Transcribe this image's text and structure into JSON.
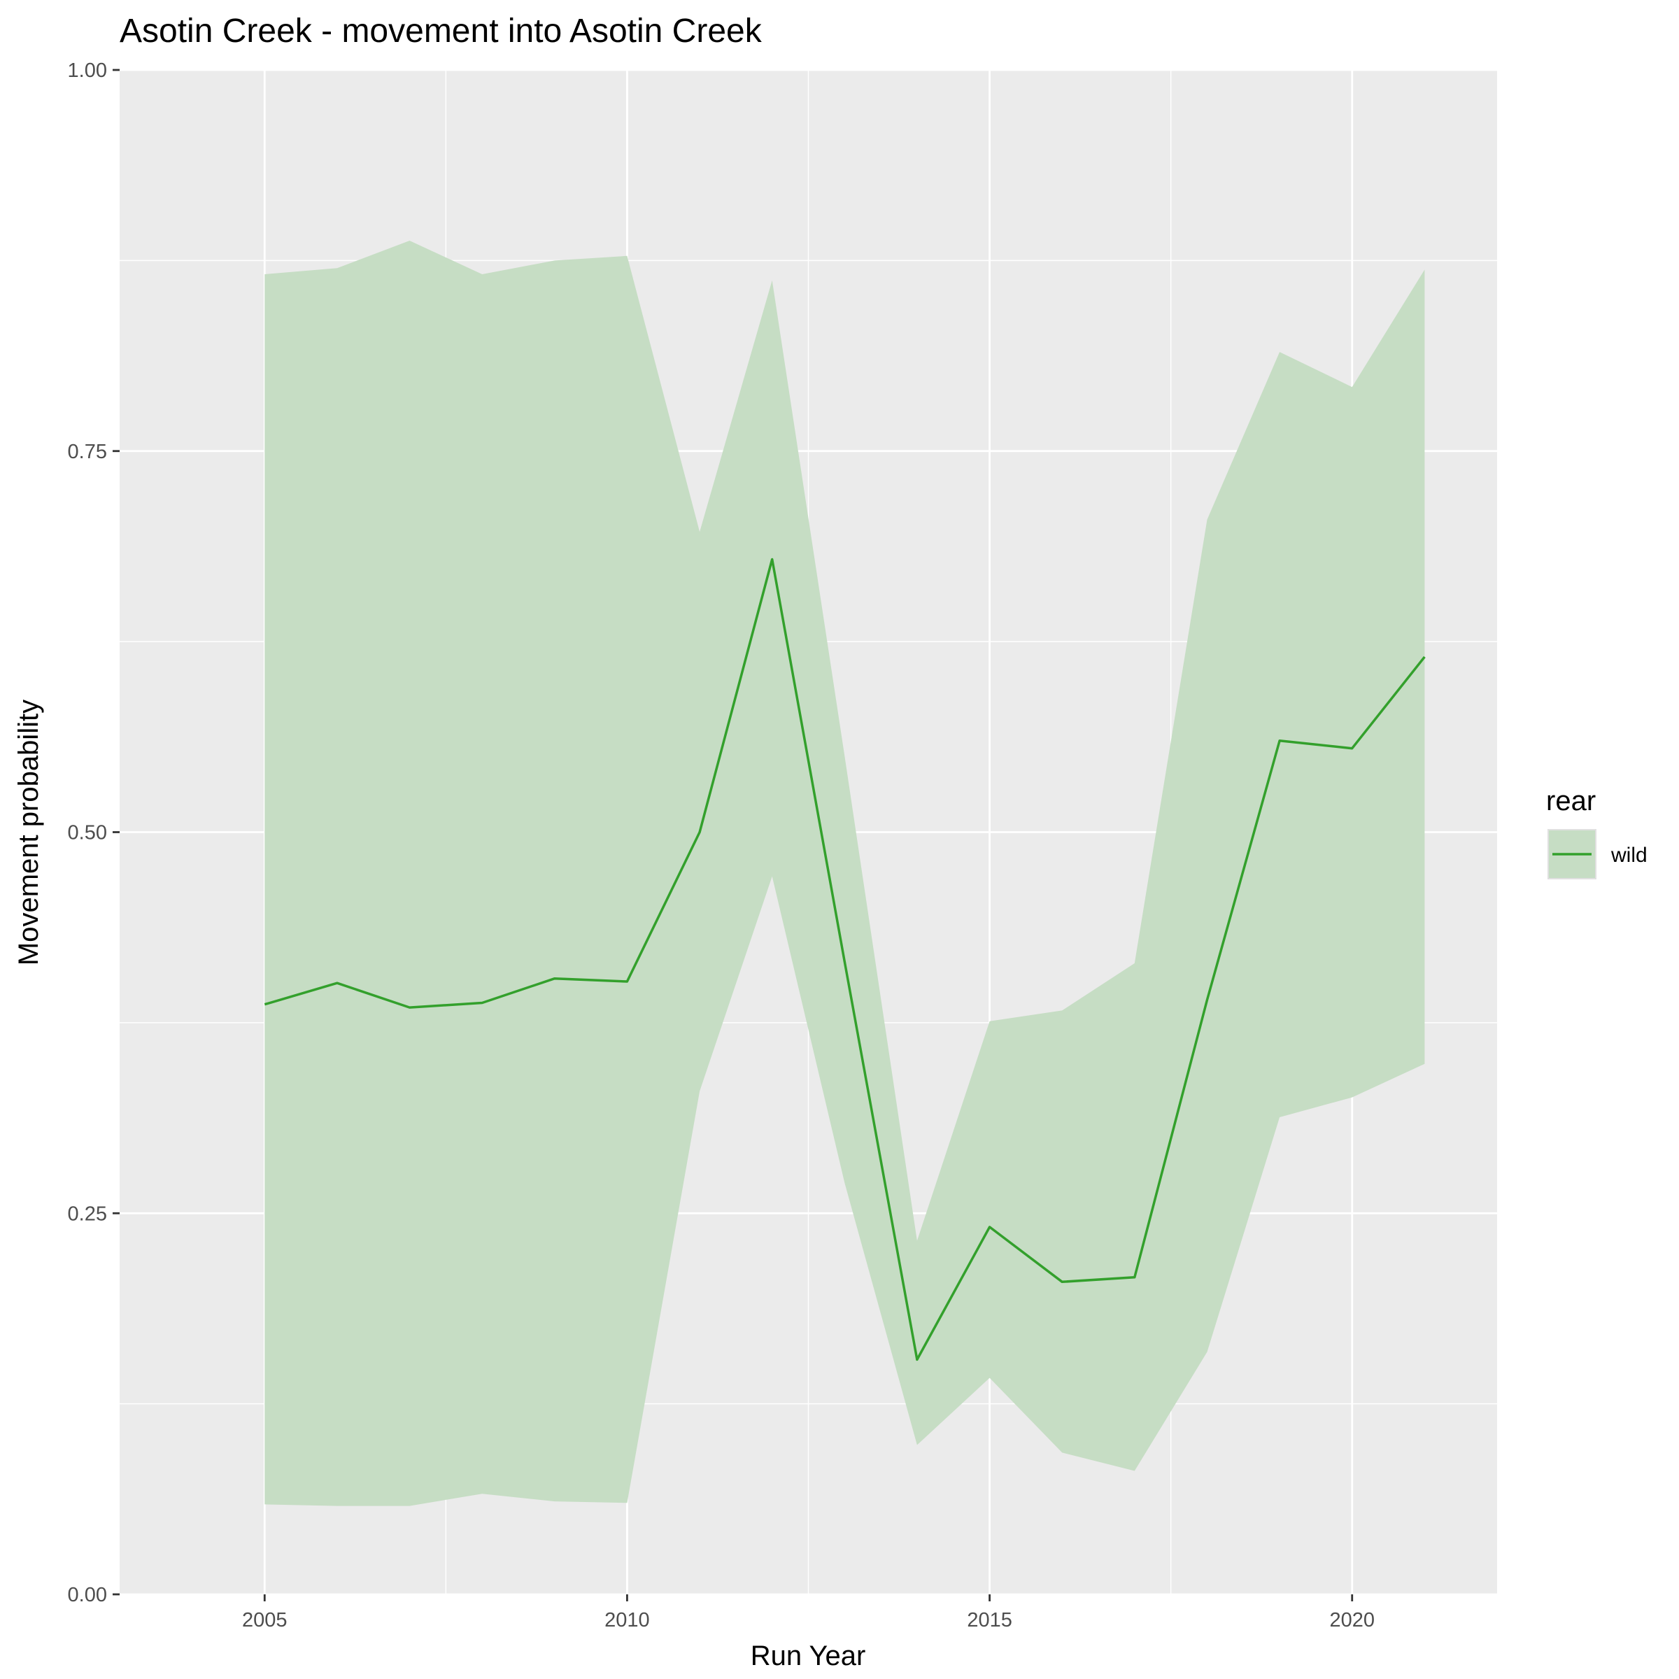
{
  "chart_data": {
    "type": "line",
    "title": "Asotin Creek - movement into Asotin Creek",
    "xlabel": "Run Year",
    "ylabel": "Movement probability",
    "xlim": [
      2003,
      2022
    ],
    "ylim": [
      0,
      1
    ],
    "x_ticks": [
      2005,
      2010,
      2015,
      2020
    ],
    "x_tick_labels": [
      "2005",
      "2010",
      "2015",
      "2020"
    ],
    "y_ticks": [
      0,
      0.25,
      0.5,
      0.75,
      1
    ],
    "y_tick_labels": [
      "0.00",
      "0.25",
      "0.50",
      "0.75",
      "1.00"
    ],
    "grid": true,
    "legend": {
      "title": "rear",
      "placement": "right"
    },
    "series": [
      {
        "name": "wild",
        "color": "#33a02c",
        "ribbon_color": "#c6ddc4",
        "x": [
          2005,
          2006,
          2007,
          2008,
          2009,
          2010,
          2011,
          2012,
          2013,
          2014,
          2015,
          2016,
          2017,
          2018,
          2019,
          2020,
          2021
        ],
        "values": [
          0.387,
          0.401,
          0.385,
          0.388,
          0.404,
          0.402,
          0.5,
          0.679,
          0.415,
          0.154,
          0.241,
          0.205,
          0.208,
          0.39,
          0.56,
          0.555,
          0.615
        ],
        "lower": [
          0.059,
          0.058,
          0.058,
          0.066,
          0.061,
          0.06,
          0.33,
          0.471,
          0.27,
          0.098,
          0.142,
          0.093,
          0.081,
          0.159,
          0.313,
          0.326,
          0.348
        ],
        "upper": [
          0.866,
          0.87,
          0.888,
          0.866,
          0.875,
          0.878,
          0.697,
          0.862,
          0.55,
          0.232,
          0.376,
          0.383,
          0.414,
          0.705,
          0.815,
          0.792,
          0.869
        ]
      }
    ]
  }
}
